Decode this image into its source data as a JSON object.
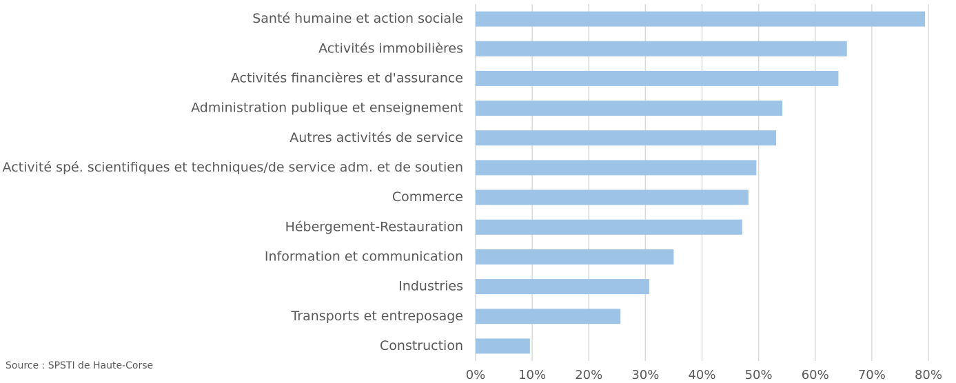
{
  "chart_data": {
    "type": "barh",
    "categories": [
      "Santé humaine et action sociale",
      "Activités immobilières",
      "Activités financières et d'assurance",
      "Administration publique et enseignement",
      "Autres activités de service",
      "Activité spé. scientifiques et techniques/de service adm. et de soutien",
      "Commerce",
      "Hébergement-Restauration",
      "Information et communication",
      "Industries",
      "Transports et entreposage",
      "Construction"
    ],
    "values": [
      79.4,
      65.6,
      64.1,
      54.2,
      53.1,
      49.6,
      48.2,
      47.1,
      35.0,
      30.7,
      25.6,
      9.6
    ],
    "color": "#9dc3e6",
    "xlim": [
      0,
      80
    ],
    "xticks": [
      {
        "value": 0,
        "label": "0%"
      },
      {
        "value": 10,
        "label": "10%"
      },
      {
        "value": 20,
        "label": "20%"
      },
      {
        "value": 30,
        "label": "30%"
      },
      {
        "value": 40,
        "label": "40%"
      },
      {
        "value": 50,
        "label": "50%"
      },
      {
        "value": 60,
        "label": "60%"
      },
      {
        "value": 70,
        "label": "70%"
      },
      {
        "value": 80,
        "label": "80%"
      }
    ],
    "grid": true,
    "source": "Source : SPSTI de Haute-Corse"
  }
}
